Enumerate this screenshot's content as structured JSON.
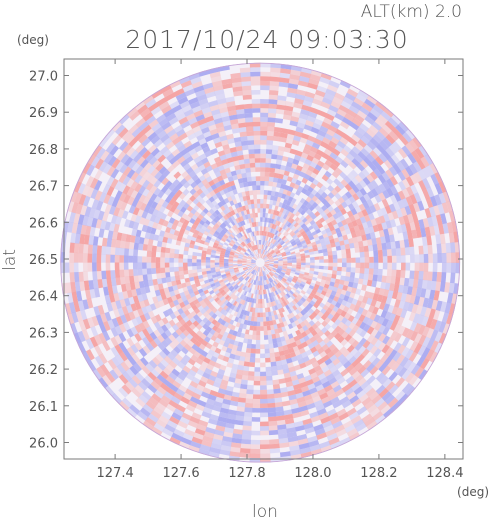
{
  "header": {
    "altitude_label": "ALT(km) 2.0",
    "timestamp": "2017/10/24 09:03:30"
  },
  "chart_data": {
    "type": "heatmap",
    "description_values": "radial ppi-style field, red = positive, blue = negative",
    "xlabel": "lon",
    "ylabel": "lat",
    "x_unit": "(deg)",
    "y_unit": "(deg)",
    "xlim": [
      127.245,
      128.455
    ],
    "ylim": [
      25.955,
      27.045
    ],
    "x_ticks": [
      "127.4",
      "127.6",
      "127.8",
      "128.0",
      "128.2",
      "128.4"
    ],
    "x_tick_values": [
      127.4,
      127.6,
      127.8,
      128.0,
      128.2,
      128.4
    ],
    "y_ticks": [
      "27.0",
      "26.9",
      "26.8",
      "26.7",
      "26.6",
      "26.5",
      "26.4",
      "26.3",
      "26.2",
      "26.1",
      "26.0"
    ],
    "y_tick_values": [
      27.0,
      26.9,
      26.8,
      26.7,
      26.6,
      26.5,
      26.4,
      26.3,
      26.2,
      26.1,
      26.0
    ],
    "center": {
      "lon": 127.84,
      "lat": 26.49
    },
    "radius_deg_lat": 0.545,
    "colors": {
      "positive": "#f4a0a0",
      "negative": "#a9a9f0",
      "neutral": "#f4f0f8",
      "frame": "#777777"
    },
    "grid": false
  }
}
